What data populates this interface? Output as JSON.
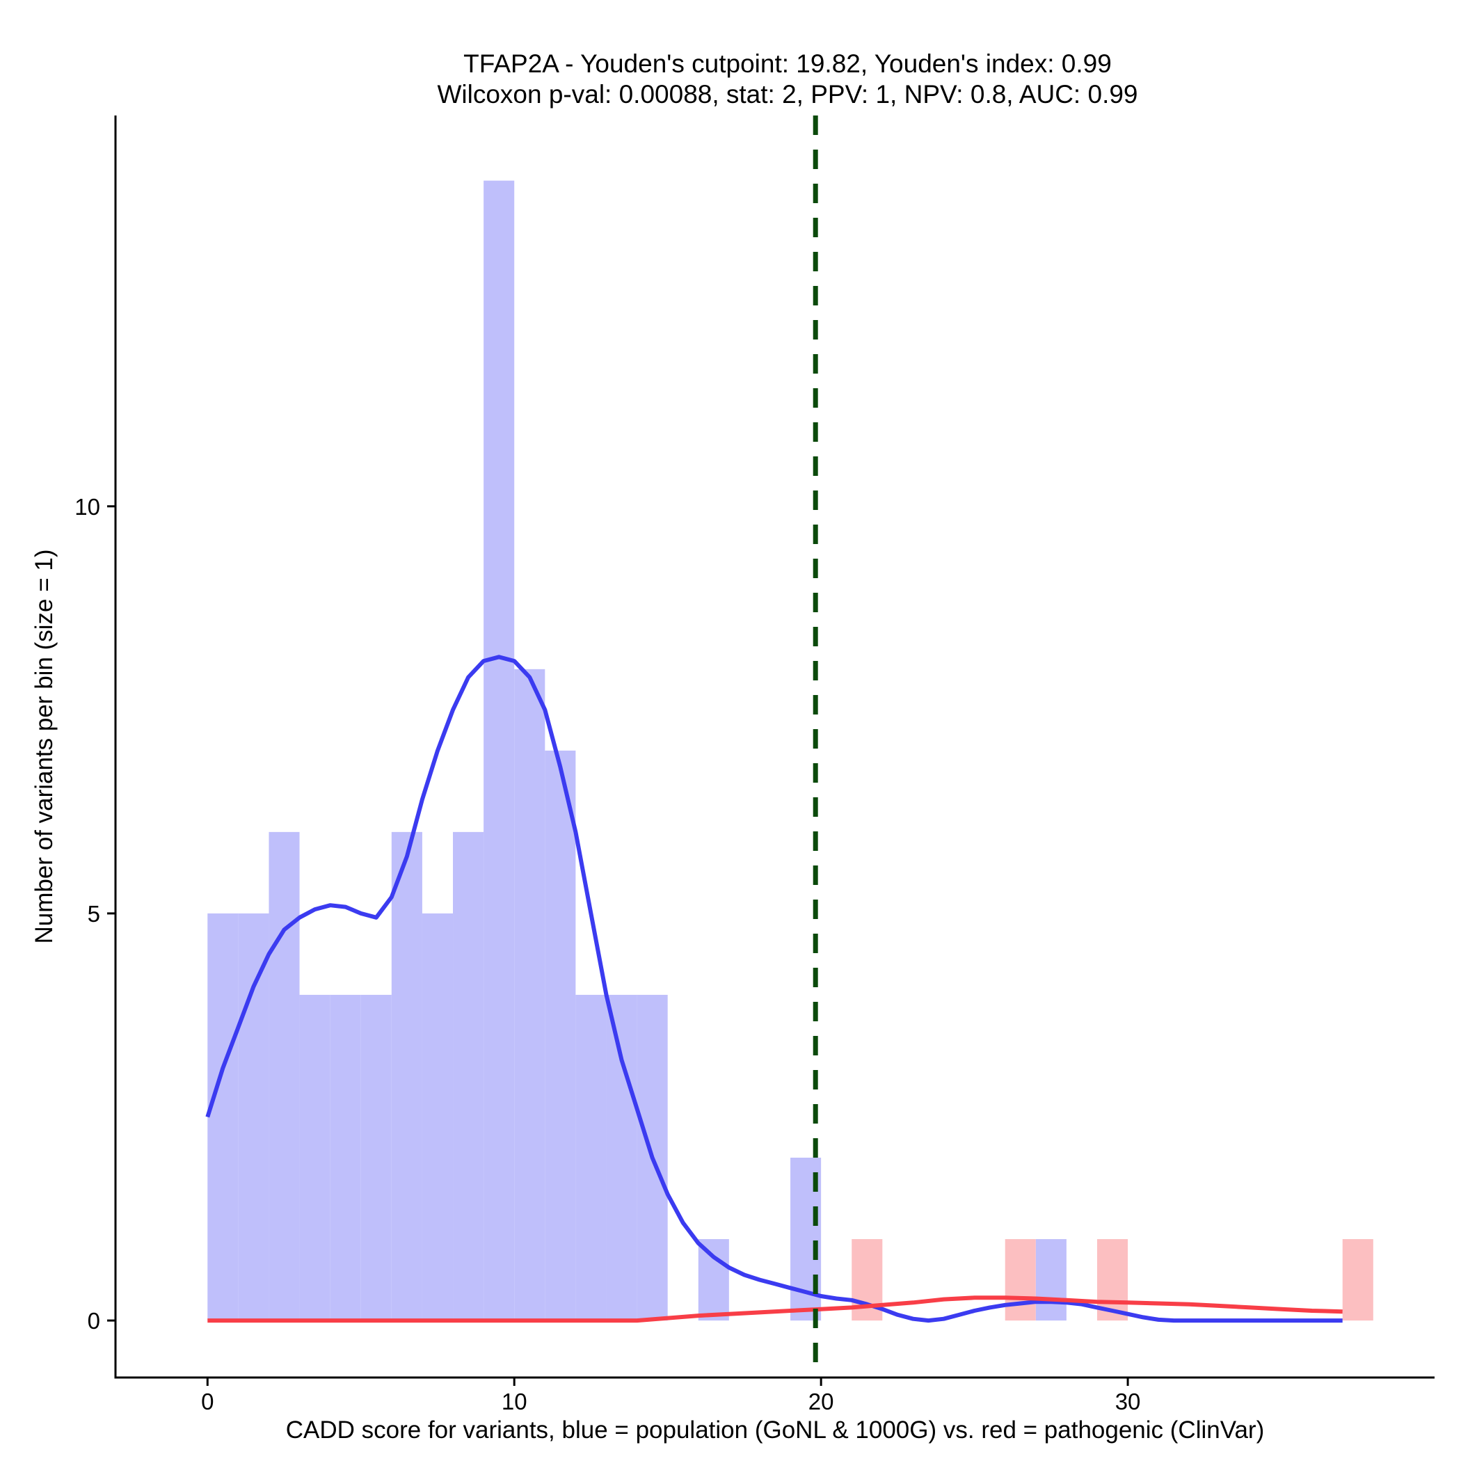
{
  "chart_data": {
    "type": "bar",
    "title": "TFAP2A - Youden's cutpoint: 19.82, Youden's index: 0.99",
    "subtitle": "Wilcoxon p-val: 0.00088, stat: 2, PPV: 1, NPV: 0.8, AUC: 0.99",
    "xlabel": "CADD score for variants, blue = population (GoNL & 1000G) vs. red = pathogenic (ClinVar)",
    "ylabel": "Number of variants per bin (size = 1)",
    "xlim": [
      -3,
      40
    ],
    "ylim": [
      -0.7,
      14.8
    ],
    "x_ticks": [
      0,
      10,
      20,
      30
    ],
    "y_ticks": [
      0,
      5,
      10
    ],
    "bin_width": 1,
    "cutpoint": 19.82,
    "colors": {
      "population_bar": "#bfbffb",
      "pathogenic_bar": "#fcbfc1",
      "population_line": "#3b3bf0",
      "pathogenic_line": "#f83e47",
      "cutpoint_line": "#0b4a0b"
    },
    "series": [
      {
        "bins": [
          {
            "x": 0,
            "count": 5
          },
          {
            "x": 1,
            "count": 5
          },
          {
            "x": 2,
            "count": 6
          },
          {
            "x": 3,
            "count": 4
          },
          {
            "x": 4,
            "count": 4
          },
          {
            "x": 5,
            "count": 4
          },
          {
            "x": 6,
            "count": 6
          },
          {
            "x": 7,
            "count": 5
          },
          {
            "x": 8,
            "count": 6
          },
          {
            "x": 9,
            "count": 14
          },
          {
            "x": 10,
            "count": 8
          },
          {
            "x": 11,
            "count": 7
          },
          {
            "x": 12,
            "count": 4
          },
          {
            "x": 13,
            "count": 4
          },
          {
            "x": 14,
            "count": 4
          },
          {
            "x": 16,
            "count": 1
          },
          {
            "x": 19,
            "count": 2
          },
          {
            "x": 27,
            "count": 1
          }
        ],
        "density": [
          [
            0,
            2.5
          ],
          [
            0.5,
            3.1
          ],
          [
            1,
            3.6
          ],
          [
            1.5,
            4.1
          ],
          [
            2,
            4.5
          ],
          [
            2.5,
            4.8
          ],
          [
            3,
            4.95
          ],
          [
            3.5,
            5.05
          ],
          [
            4,
            5.1
          ],
          [
            4.5,
            5.08
          ],
          [
            5,
            5.0
          ],
          [
            5.5,
            4.95
          ],
          [
            6,
            5.2
          ],
          [
            6.5,
            5.7
          ],
          [
            7,
            6.4
          ],
          [
            7.5,
            7.0
          ],
          [
            8,
            7.5
          ],
          [
            8.5,
            7.9
          ],
          [
            9,
            8.1
          ],
          [
            9.5,
            8.15
          ],
          [
            10,
            8.1
          ],
          [
            10.5,
            7.9
          ],
          [
            11,
            7.5
          ],
          [
            11.5,
            6.8
          ],
          [
            12,
            6.0
          ],
          [
            12.5,
            5.0
          ],
          [
            13,
            4.0
          ],
          [
            13.5,
            3.2
          ],
          [
            14,
            2.6
          ],
          [
            14.5,
            2.0
          ],
          [
            15,
            1.55
          ],
          [
            15.5,
            1.2
          ],
          [
            16,
            0.95
          ],
          [
            16.5,
            0.78
          ],
          [
            17,
            0.65
          ],
          [
            17.5,
            0.56
          ],
          [
            18,
            0.5
          ],
          [
            18.5,
            0.45
          ],
          [
            19,
            0.4
          ],
          [
            19.5,
            0.35
          ],
          [
            20,
            0.3
          ],
          [
            20.5,
            0.27
          ],
          [
            21,
            0.25
          ],
          [
            21.5,
            0.2
          ],
          [
            22,
            0.14
          ],
          [
            22.5,
            0.07
          ],
          [
            23,
            0.02
          ],
          [
            23.5,
            0.0
          ],
          [
            24,
            0.02
          ],
          [
            24.5,
            0.07
          ],
          [
            25,
            0.12
          ],
          [
            25.5,
            0.16
          ],
          [
            26,
            0.19
          ],
          [
            26.5,
            0.21
          ],
          [
            27,
            0.23
          ],
          [
            27.5,
            0.23
          ],
          [
            28,
            0.22
          ],
          [
            28.5,
            0.2
          ],
          [
            29,
            0.16
          ],
          [
            29.5,
            0.12
          ],
          [
            30,
            0.08
          ],
          [
            30.5,
            0.04
          ],
          [
            31,
            0.01
          ],
          [
            31.5,
            0.0
          ],
          [
            32,
            0.0
          ],
          [
            33,
            0.0
          ],
          [
            34,
            0.0
          ],
          [
            35,
            0.0
          ],
          [
            36,
            0.0
          ],
          [
            37,
            0.0
          ]
        ]
      },
      {
        "bins": [
          {
            "x": 21,
            "count": 1
          },
          {
            "x": 26,
            "count": 1
          },
          {
            "x": 29,
            "count": 1
          },
          {
            "x": 37,
            "count": 1
          }
        ],
        "density": [
          [
            0,
            0.0
          ],
          [
            2,
            0.0
          ],
          [
            4,
            0.0
          ],
          [
            6,
            0.0
          ],
          [
            8,
            0.0
          ],
          [
            10,
            0.0
          ],
          [
            12,
            0.0
          ],
          [
            14,
            0.0
          ],
          [
            15,
            0.03
          ],
          [
            16,
            0.06
          ],
          [
            17,
            0.08
          ],
          [
            18,
            0.1
          ],
          [
            19,
            0.12
          ],
          [
            20,
            0.14
          ],
          [
            21,
            0.16
          ],
          [
            22,
            0.19
          ],
          [
            23,
            0.22
          ],
          [
            24,
            0.26
          ],
          [
            25,
            0.28
          ],
          [
            26,
            0.28
          ],
          [
            27,
            0.27
          ],
          [
            28,
            0.25
          ],
          [
            29,
            0.23
          ],
          [
            30,
            0.22
          ],
          [
            31,
            0.21
          ],
          [
            32,
            0.2
          ],
          [
            33,
            0.18
          ],
          [
            34,
            0.16
          ],
          [
            35,
            0.14
          ],
          [
            36,
            0.12
          ],
          [
            37,
            0.11
          ]
        ]
      }
    ]
  }
}
